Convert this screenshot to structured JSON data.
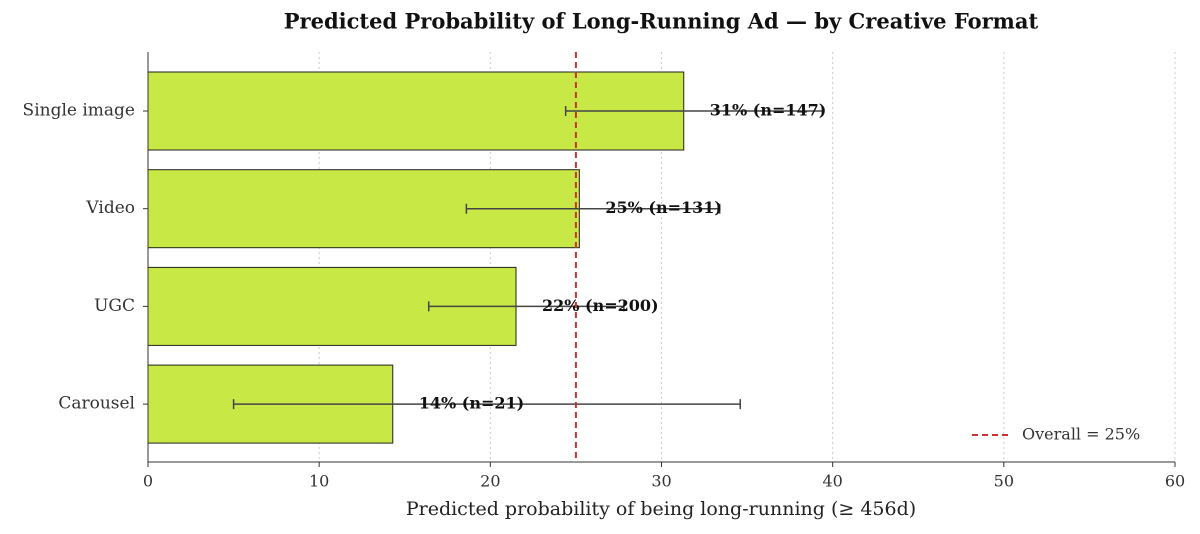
{
  "chart_data": {
    "type": "barh",
    "title": "Predicted Probability of Long-Running Ad — by Creative Format",
    "xlabel": "Predicted probability of being long-running (≥ 456d)",
    "categories": [
      "Single image",
      "Video",
      "UGC",
      "Carousel"
    ],
    "values": [
      31.3,
      25.2,
      21.5,
      14.3
    ],
    "value_labels": [
      "31% (n=147)",
      "25% (n=131)",
      "22% (n=200)",
      "14% (n=21)"
    ],
    "ci_low": [
      24.4,
      18.6,
      16.4,
      5.0
    ],
    "ci_high": [
      39.4,
      33.4,
      27.8,
      34.6
    ],
    "color": "#c8e845",
    "reference_line": {
      "value": 25,
      "label": "Overall = 25%",
      "color": "#cc3333"
    },
    "xlim": [
      0,
      60
    ],
    "xticks": [
      0,
      10,
      20,
      30,
      40,
      50,
      60
    ],
    "grid": true,
    "legend": "lower right"
  }
}
